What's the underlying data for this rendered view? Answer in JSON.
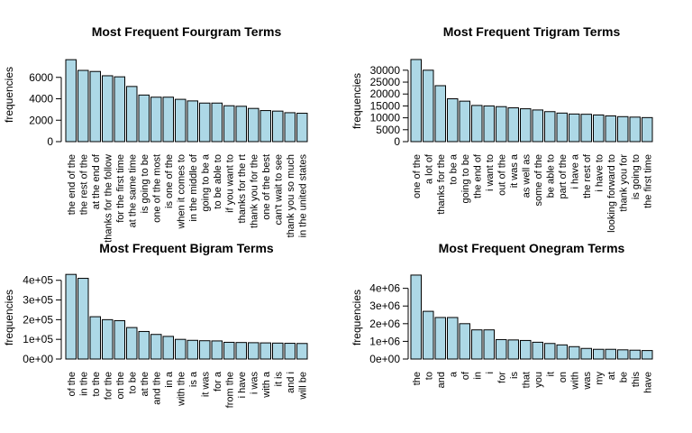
{
  "chart_data": [
    {
      "type": "bar",
      "title": "Most Frequent Fourgram Terms",
      "xlabel": "",
      "ylabel": "frequencies",
      "ylim": [
        0,
        8000
      ],
      "yticks": [
        0,
        2000,
        4000,
        6000
      ],
      "ytick_labels": [
        "0",
        "2000",
        "4000",
        "6000"
      ],
      "categories": [
        "the end of the",
        "the rest of the",
        "at the end of",
        "thanks for the follow",
        "for the first time",
        "at the same time",
        "is going to be",
        "one of the most",
        "is one of the",
        "when it comes to",
        "in the middle of",
        "going to be a",
        "to be able to",
        "if you want to",
        "thanks for the rt",
        "thank you for the",
        "one of the best",
        "can't wait to see",
        "thank you so much",
        "in the united states"
      ],
      "values": [
        7650,
        6650,
        6550,
        6150,
        6050,
        5150,
        4350,
        4150,
        4150,
        3950,
        3800,
        3600,
        3600,
        3350,
        3300,
        3100,
        2900,
        2850,
        2700,
        2650
      ]
    },
    {
      "type": "bar",
      "title": "Most Frequent Trigram Terms",
      "xlabel": "",
      "ylabel": "frequencies",
      "ylim": [
        0,
        36000
      ],
      "yticks": [
        0,
        5000,
        10000,
        15000,
        20000,
        25000,
        30000
      ],
      "ytick_labels": [
        "0",
        "5000",
        "10000",
        "15000",
        "20000",
        "25000",
        "30000"
      ],
      "categories": [
        "one of the",
        "a lot of",
        "thanks for the",
        "to be a",
        "going to be",
        "the end of",
        "i want to",
        "out of the",
        "it was a",
        "as well as",
        "some of the",
        "be able to",
        "part of the",
        "i have a",
        "the rest of",
        "i have to",
        "looking forward to",
        "thank you for",
        "is going to",
        "the first time"
      ],
      "values": [
        34500,
        30000,
        23500,
        18000,
        17000,
        15200,
        15000,
        14700,
        14200,
        13800,
        13300,
        12600,
        12000,
        11600,
        11500,
        11200,
        10800,
        10500,
        10300,
        10100
      ]
    },
    {
      "type": "bar",
      "title": "Most Frequent Bigram Terms",
      "xlabel": "",
      "ylabel": "frequencies",
      "ylim": [
        0,
        440000
      ],
      "yticks": [
        0,
        100000,
        200000,
        300000,
        400000
      ],
      "ytick_labels": [
        "0e+00",
        "1e+05",
        "2e+05",
        "3e+05",
        "4e+05"
      ],
      "categories": [
        "of the",
        "in the",
        "to the",
        "for the",
        "on the",
        "to be",
        "at the",
        "and the",
        "in a",
        "with the",
        "is a",
        "it was",
        "for a",
        "from the",
        "i have",
        "i was",
        "with a",
        "it is",
        "and i",
        "will be"
      ],
      "values": [
        430000,
        410000,
        215000,
        200000,
        195000,
        160000,
        140000,
        125000,
        115000,
        100000,
        95000,
        93000,
        92000,
        85000,
        84000,
        83000,
        82000,
        81000,
        80000,
        79000
      ]
    },
    {
      "type": "bar",
      "title": "Most Frequent Onegram Terms",
      "xlabel": "",
      "ylabel": "frequencies",
      "ylim": [
        0,
        4900000
      ],
      "yticks": [
        0,
        1000000,
        2000000,
        3000000,
        4000000
      ],
      "ytick_labels": [
        "0e+00",
        "1e+06",
        "2e+06",
        "3e+06",
        "4e+06"
      ],
      "categories": [
        "the",
        "to",
        "and",
        "a",
        "of",
        "in",
        "i",
        "for",
        "is",
        "that",
        "you",
        "it",
        "on",
        "with",
        "was",
        "my",
        "at",
        "be",
        "this",
        "have"
      ],
      "values": [
        4750000,
        2700000,
        2350000,
        2350000,
        2000000,
        1650000,
        1650000,
        1100000,
        1080000,
        1050000,
        950000,
        880000,
        800000,
        700000,
        600000,
        550000,
        550000,
        520000,
        500000,
        480000
      ]
    }
  ]
}
